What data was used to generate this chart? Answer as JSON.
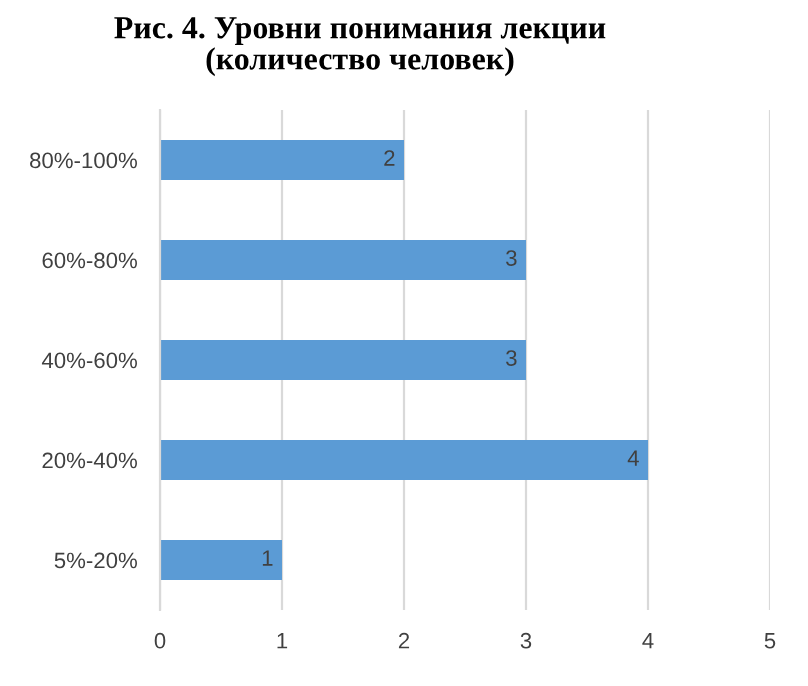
{
  "chart_data": {
    "type": "bar",
    "orientation": "horizontal",
    "title": "Рис. 4. Уровни понимания лекции\n(количество человек)",
    "categories": [
      "80%-100%",
      "60%-80%",
      "40%-60%",
      "20%-40%",
      "5%-20%"
    ],
    "values": [
      2,
      3,
      3,
      4,
      1
    ],
    "color": "#5b9bd5",
    "xlim": [
      0,
      5
    ],
    "xticks": [
      0,
      1,
      2,
      3,
      4,
      5
    ],
    "grid": "x",
    "data_labels": true
  }
}
